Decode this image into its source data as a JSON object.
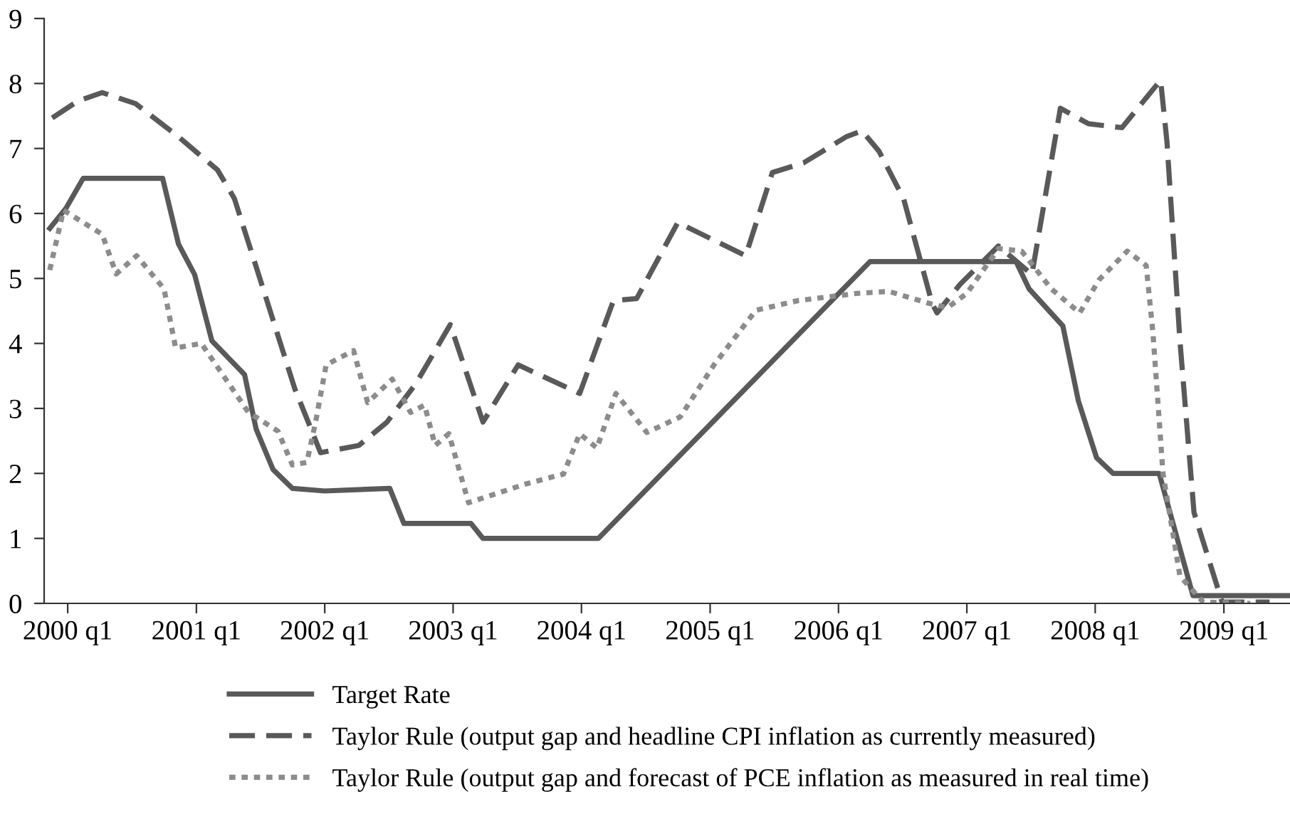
{
  "chart_data": {
    "type": "line",
    "xlim": [
      "1999-10-26",
      "2009-07-08"
    ],
    "ylim": [
      0,
      9
    ],
    "yticks": [
      0,
      1,
      2,
      3,
      4,
      5,
      6,
      7,
      8,
      9
    ],
    "xticks": [
      {
        "value": "2000-01",
        "label": "2000 q1"
      },
      {
        "value": "2001-01",
        "label": "2001 q1"
      },
      {
        "value": "2002-01",
        "label": "2002 q1"
      },
      {
        "value": "2003-01",
        "label": "2003 q1"
      },
      {
        "value": "2004-01",
        "label": "2004 q1"
      },
      {
        "value": "2005-01",
        "label": "2005 q1"
      },
      {
        "value": "2006-01",
        "label": "2006 q1"
      },
      {
        "value": "2007-01",
        "label": "2007 q1"
      },
      {
        "value": "2008-01",
        "label": "2008 q1"
      },
      {
        "value": "2009-01",
        "label": "2009 q1"
      }
    ],
    "grid": false,
    "legend": "bottom",
    "marker": "none",
    "series": [
      {
        "name": "Target Rate",
        "color": "#595959",
        "line_style": "solid",
        "x": [
          "1999-11-11",
          "1999-12-27",
          "2000-02-14",
          "2000-09-27",
          "2000-11-11",
          "2000-12-27",
          "2001-02-14",
          "2001-05-18",
          "2001-06-20",
          "2001-08-07",
          "2001-10-01",
          "2002-01-01",
          "2002-07-05",
          "2002-08-14",
          "2003-02-21",
          "2003-03-27",
          "2004-02-18",
          "2006-04-01",
          "2007-05-21",
          "2007-06-27",
          "2007-10-01",
          "2007-11-14",
          "2008-01-05",
          "2008-02-21",
          "2008-07-01",
          "2008-10-05",
          "2009-07-05"
        ],
        "values": [
          5.77,
          6.08,
          6.54,
          6.54,
          5.53,
          5.06,
          4.04,
          3.52,
          2.68,
          2.06,
          1.77,
          1.73,
          1.77,
          1.23,
          1.23,
          1.0,
          1.0,
          5.26,
          5.26,
          4.84,
          4.27,
          3.12,
          2.24,
          2.0,
          2.0,
          0.12,
          0.12
        ]
      },
      {
        "name": "Taylor Rule (output gap and headline CPI inflation as currently measured)",
        "color": "#595959",
        "line_style": "dashed",
        "x": [
          "1999-11-18",
          "2000-01-30",
          "2000-04-08",
          "2000-07-12",
          "2000-11-11",
          "2001-03-02",
          "2001-04-19",
          "2001-06-27",
          "2001-10-08",
          "2001-12-20",
          "2002-04-08",
          "2002-06-27",
          "2002-09-17",
          "2002-12-24",
          "2003-03-27",
          "2003-07-05",
          "2003-12-27",
          "2004-04-01",
          "2004-06-06",
          "2004-10-01",
          "2005-04-12",
          "2005-06-27",
          "2005-09-24",
          "2006-01-23",
          "2006-03-09",
          "2006-04-26",
          "2006-07-05",
          "2006-09-24",
          "2006-10-08",
          "2006-12-13",
          "2007-04-01",
          "2007-07-05",
          "2007-09-24",
          "2007-12-13",
          "2008-03-17",
          "2008-07-05",
          "2008-07-23",
          "2008-08-29",
          "2008-10-08",
          "2008-12-27",
          "2009-05-11"
        ],
        "values": [
          7.47,
          7.73,
          7.86,
          7.69,
          7.18,
          6.67,
          6.23,
          5.06,
          3.3,
          2.32,
          2.43,
          2.79,
          3.38,
          4.29,
          2.79,
          3.67,
          3.23,
          4.66,
          4.69,
          5.86,
          5.35,
          6.63,
          6.78,
          7.18,
          7.27,
          6.96,
          6.23,
          4.62,
          4.47,
          4.91,
          5.5,
          5.06,
          7.62,
          7.38,
          7.32,
          8.05,
          7.11,
          4.04,
          1.4,
          0.02,
          0.02
        ]
      },
      {
        "name": "Taylor Rule (output gap and forecast of PCE inflation as measured in real time)",
        "color": "#8c8c8c",
        "line_style": "dotted",
        "x": [
          "1999-11-11",
          "1999-12-20",
          "2000-04-08",
          "2000-05-18",
          "2000-07-15",
          "2000-10-01",
          "2000-11-03",
          "2001-01-15",
          "2001-05-29",
          "2001-08-21",
          "2001-10-01",
          "2001-11-11",
          "2001-12-06",
          "2002-01-05",
          "2002-03-24",
          "2002-05-03",
          "2002-07-12",
          "2002-09-02",
          "2002-10-12",
          "2002-11-11",
          "2002-12-20",
          "2003-02-14",
          "2003-07-28",
          "2003-11-11",
          "2003-12-27",
          "2004-02-14",
          "2004-04-08",
          "2004-07-05",
          "2004-10-08",
          "2005-01-12",
          "2005-05-11",
          "2005-09-09",
          "2006-02-21",
          "2006-05-25",
          "2006-09-13",
          "2006-11-07",
          "2007-01-01",
          "2007-04-01",
          "2007-06-06",
          "2007-08-29",
          "2007-11-18",
          "2008-01-12",
          "2008-04-01",
          "2008-05-25",
          "2008-06-13",
          "2008-07-12",
          "2008-08-29",
          "2008-11-03",
          "2009-03-17"
        ],
        "values": [
          5.13,
          6.05,
          5.68,
          5.07,
          5.35,
          4.84,
          3.93,
          4.0,
          2.94,
          2.65,
          2.13,
          2.17,
          2.79,
          3.67,
          3.89,
          3.09,
          3.45,
          2.94,
          3.05,
          2.43,
          2.61,
          1.55,
          1.84,
          1.99,
          2.61,
          2.39,
          3.23,
          2.63,
          2.87,
          3.67,
          4.51,
          4.66,
          4.77,
          4.8,
          4.62,
          4.55,
          4.77,
          5.46,
          5.42,
          4.84,
          4.47,
          4.98,
          5.42,
          5.2,
          4.18,
          1.99,
          0.42,
          0.02,
          0.0
        ]
      }
    ]
  }
}
